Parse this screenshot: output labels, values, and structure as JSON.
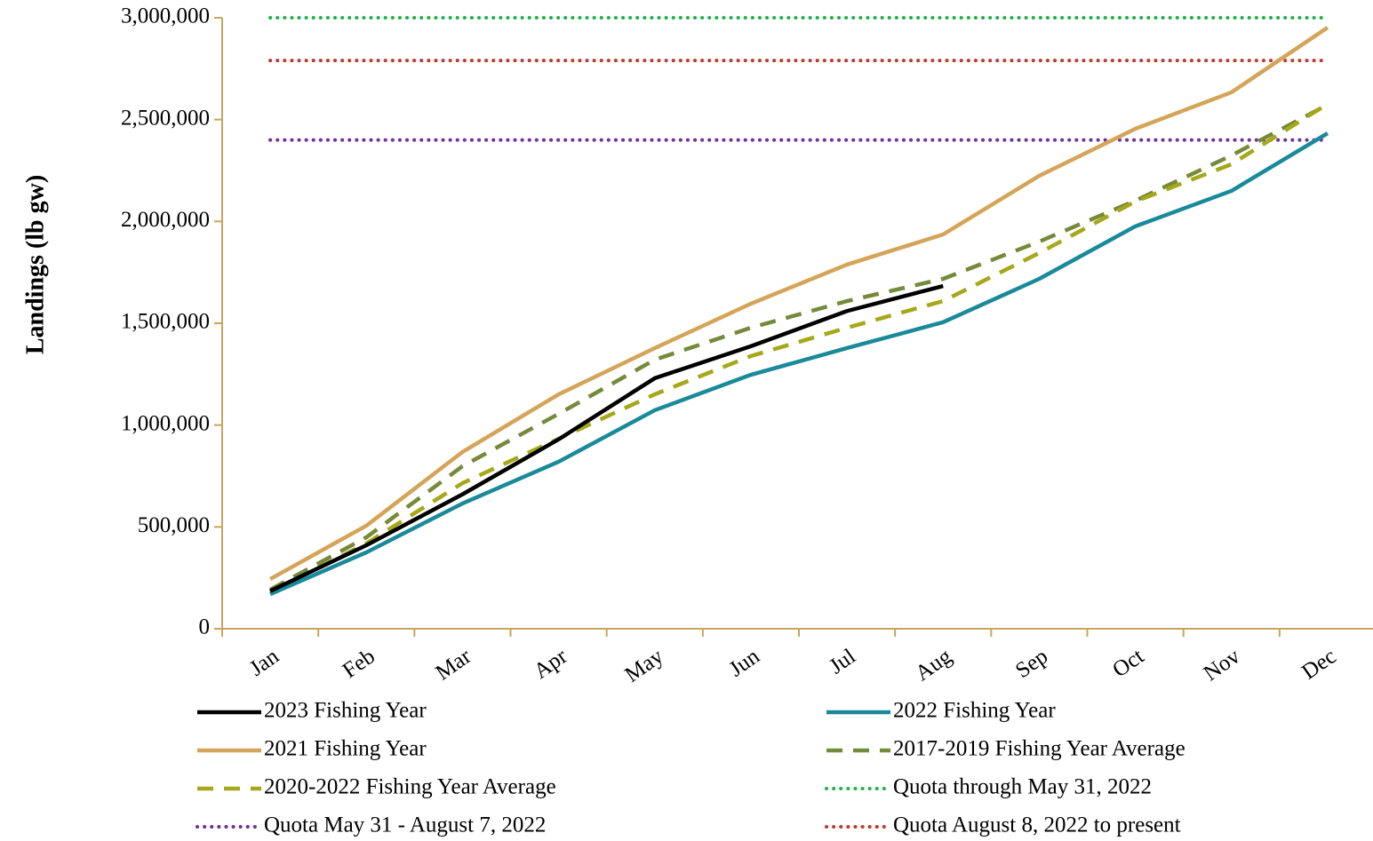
{
  "chart_data": {
    "type": "line",
    "y_label": "Landings (lb gw)",
    "categories": [
      "Jan",
      "Feb",
      "Mar",
      "Apr",
      "May",
      "Jun",
      "Jul",
      "Aug",
      "Sep",
      "Oct",
      "Nov",
      "Dec"
    ],
    "ylim": [
      0,
      3000000
    ],
    "yticks": [
      0,
      {
        "value": 500000,
        "label": "500,000"
      },
      {
        "value": 1000000,
        "label": "1,000,000"
      },
      {
        "value": 1500000,
        "label": "1,500,000"
      },
      {
        "value": 2000000,
        "label": "2,000,000"
      },
      {
        "value": 2500000,
        "label": "2,500,000"
      },
      {
        "value": 3000000,
        "label": "3,000,000"
      }
    ],
    "axis_color": "#c8a55a",
    "series": [
      {
        "name": "2023 Fishing Year",
        "color": "#000000",
        "style": "solid",
        "values": [
          185000,
          410000,
          660000,
          930000,
          1230000,
          1387000,
          1560000,
          1683000,
          null,
          null,
          null,
          null
        ]
      },
      {
        "name": "2022 Fishing Year",
        "color": "#1a8a9a",
        "style": "solid",
        "values": [
          170000,
          375000,
          615000,
          820000,
          1073000,
          1247000,
          1378000,
          1505000,
          1718000,
          1976000,
          2150000,
          2433000
        ]
      },
      {
        "name": "2021 Fishing Year",
        "color": "#d4a559",
        "style": "solid",
        "values": [
          244000,
          506000,
          868000,
          1151000,
          1378000,
          1596000,
          1788000,
          1936000,
          2224000,
          2455000,
          2634000,
          2952000
        ]
      },
      {
        "name": "2017-2019 Fishing Year Average",
        "color": "#77893a",
        "style": "dashed",
        "values": [
          192000,
          449000,
          798000,
          1055000,
          1321000,
          1478000,
          1609000,
          1718000,
          1901000,
          2102000,
          2324000,
          2573000
        ]
      },
      {
        "name": "2020-2022 Fishing Year Average",
        "color": "#a6a81a",
        "style": "dashed",
        "values": [
          179000,
          419000,
          715000,
          933000,
          1151000,
          1339000,
          1478000,
          1609000,
          1845000,
          2098000,
          2281000,
          2577000
        ]
      },
      {
        "name": "Quota through May 31, 2022",
        "color": "#22b14c",
        "style": "dotted",
        "values": [
          3000000,
          3000000,
          3000000,
          3000000,
          3000000,
          3000000,
          3000000,
          3000000,
          3000000,
          3000000,
          3000000,
          3000000
        ]
      },
      {
        "name": "Quota May 31 - August 7, 2022",
        "color": "#7030a0",
        "style": "dotted",
        "values": [
          2400000,
          2400000,
          2400000,
          2400000,
          2400000,
          2400000,
          2400000,
          2400000,
          2400000,
          2400000,
          2400000,
          2400000
        ]
      },
      {
        "name": "Quota August 8, 2022 to present",
        "color": "#c0392b",
        "style": "dotted",
        "values": [
          2790000,
          2790000,
          2790000,
          2790000,
          2790000,
          2790000,
          2790000,
          2790000,
          2790000,
          2790000,
          2790000,
          2790000
        ]
      }
    ]
  }
}
